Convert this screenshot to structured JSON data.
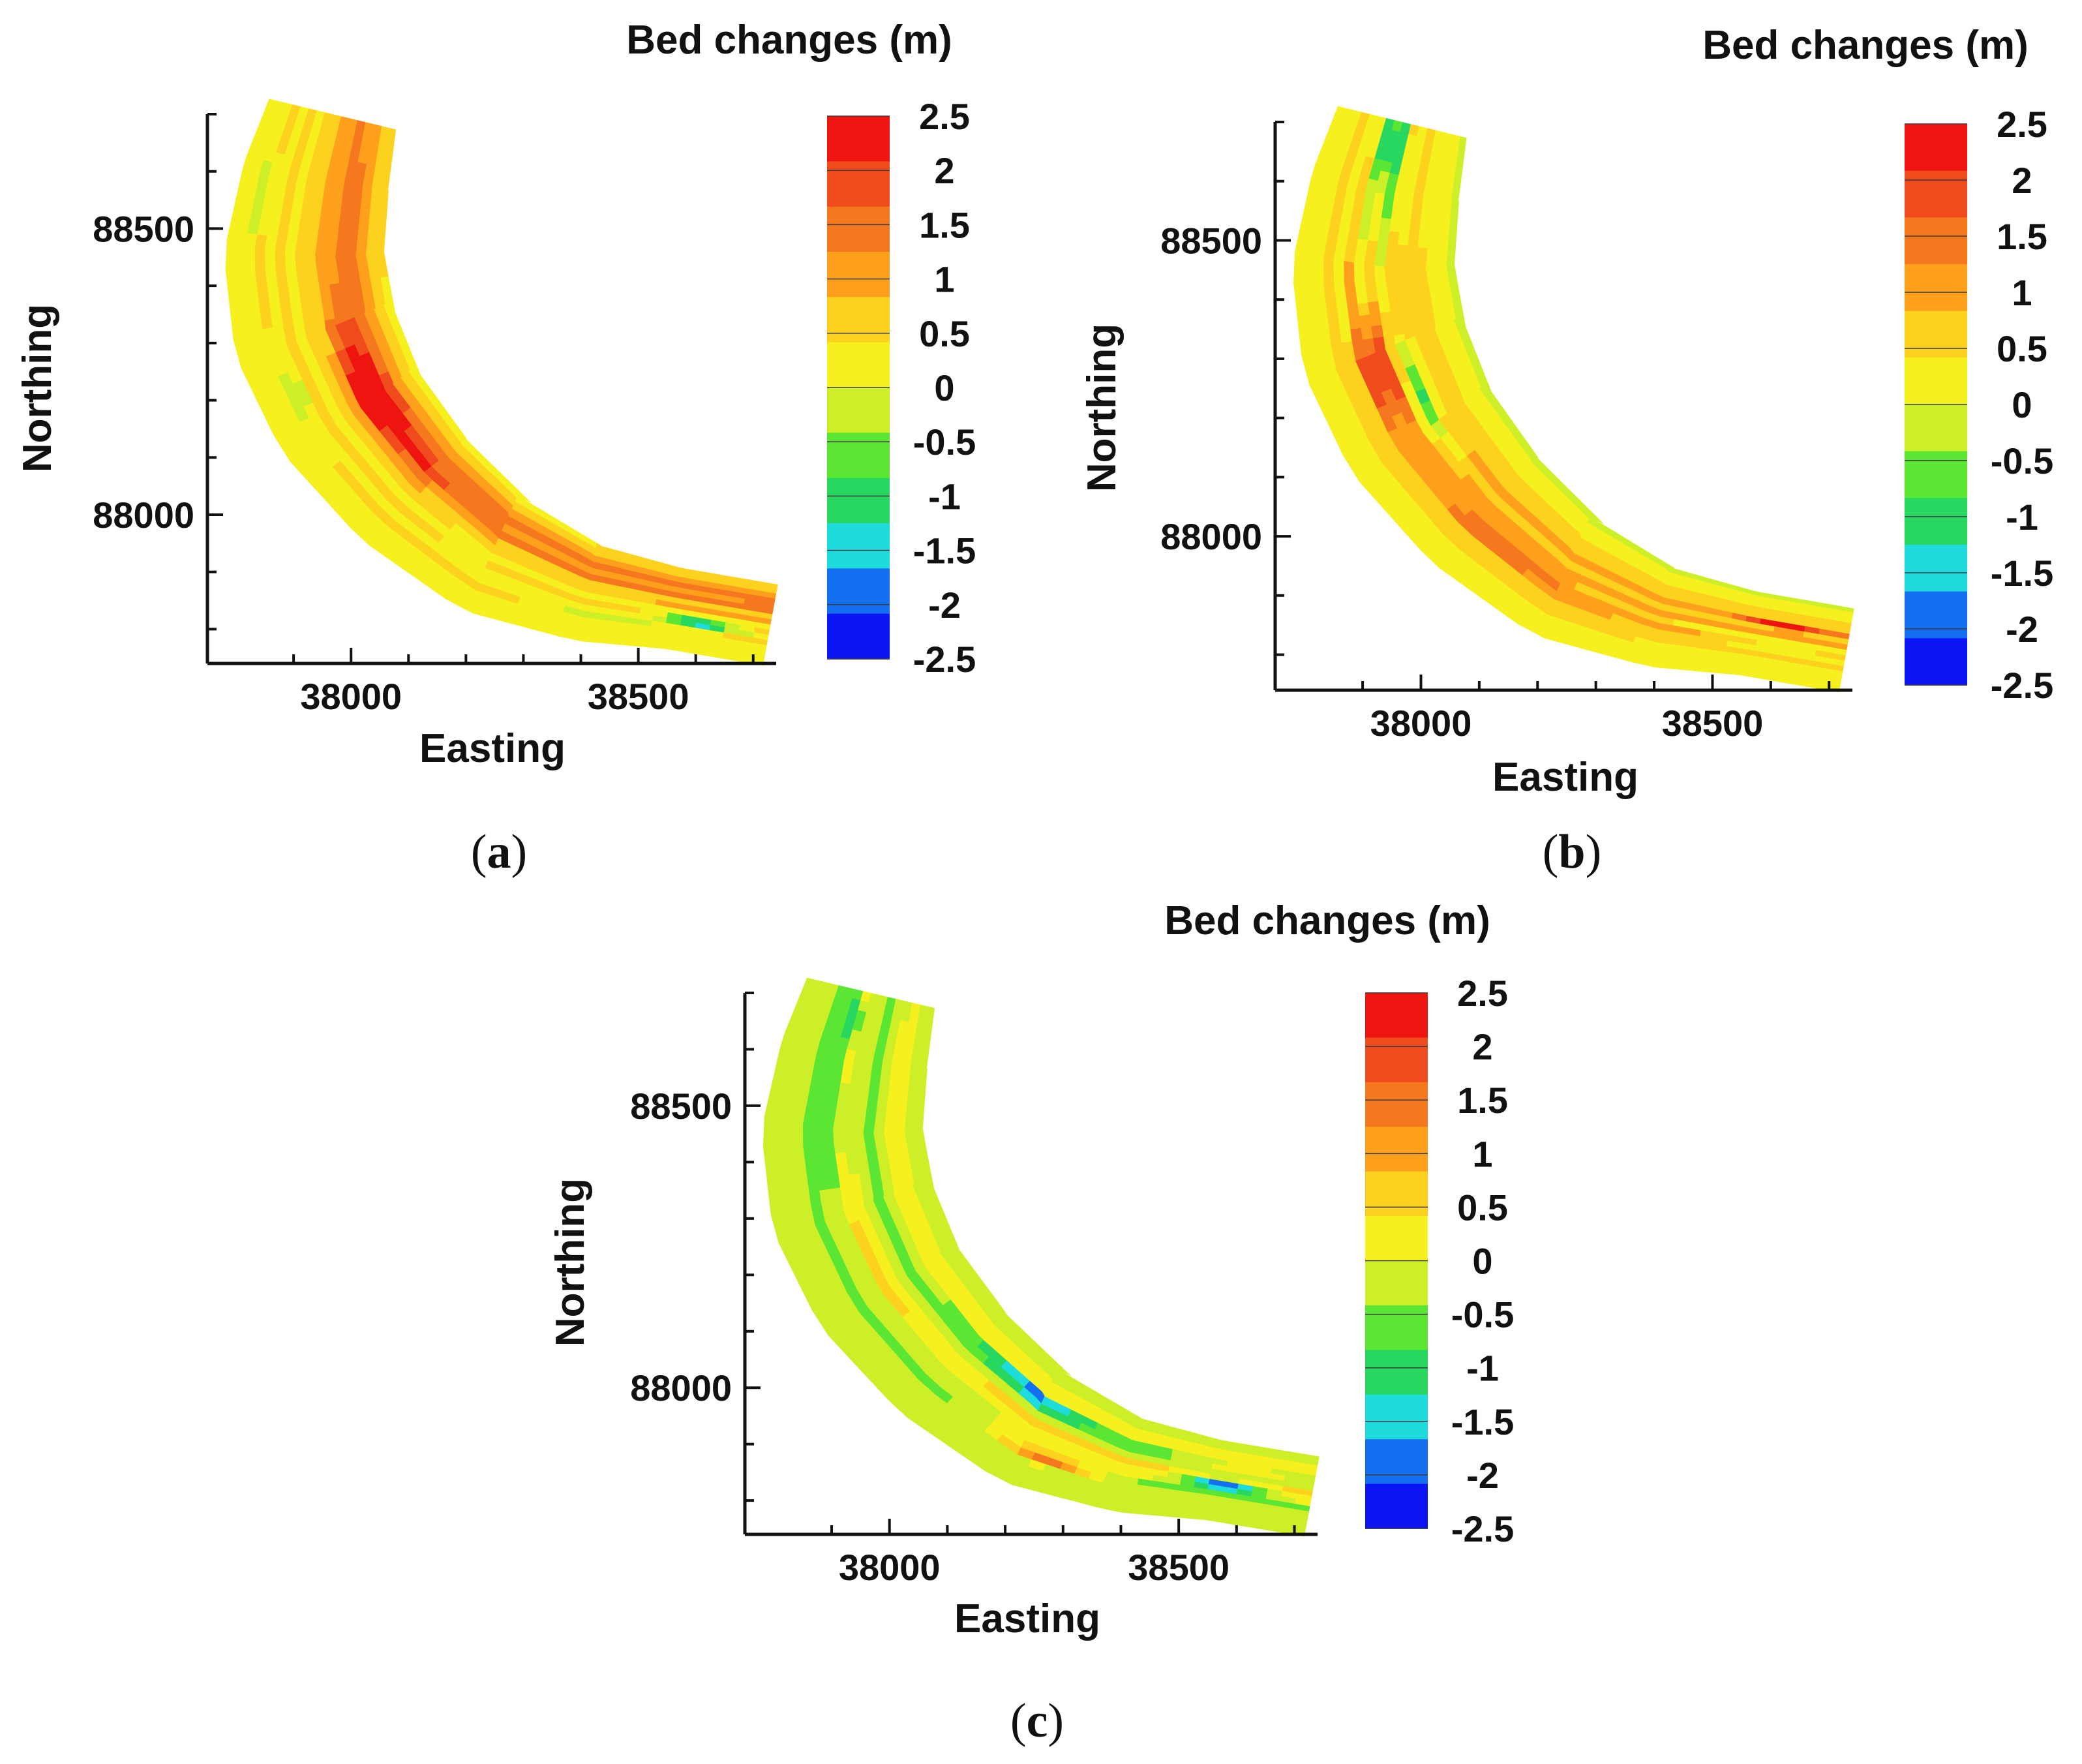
{
  "figure": {
    "panel_labels": [
      "a",
      "b",
      "c"
    ],
    "label_open": "(",
    "label_close": ")"
  },
  "colors": {
    "background": "#ffffff",
    "axis": "#111111",
    "colormap": [
      "#0b14f2",
      "#1470f0",
      "#1edcdc",
      "#28d760",
      "#5ae632",
      "#cdef28",
      "#f5f01e",
      "#fdd21e",
      "#ffa01c",
      "#f5781e",
      "#f04b1c",
      "#ee1410"
    ]
  },
  "chart_data": [
    {
      "type": "heatmap",
      "panel": "a",
      "title": "Bed changes (m)",
      "xlabel": "Easting",
      "ylabel": "Northing",
      "xlim": [
        37750,
        38740
      ],
      "ylim": [
        87740,
        88700
      ],
      "xticks": [
        38000,
        38500
      ],
      "yticks": [
        88000,
        88500
      ],
      "colorbar": {
        "title": "Bed changes (m)",
        "min": -2.5,
        "max": 2.5,
        "ticks": [
          "2.5",
          "2",
          "1.5",
          "1",
          "0.5",
          "0",
          "-0.5",
          "-1",
          "-1.5",
          "-2",
          "-2.5"
        ]
      },
      "field": {
        "base": 0.25,
        "bands": [
          0.9,
          1.35,
          1.6,
          1.1,
          0.5,
          0.35,
          0.5,
          0.3,
          0.25
        ],
        "features": [
          {
            "s": 0.45,
            "n": -0.3,
            "ds": 0.1,
            "dn": 0.2,
            "v": 1.8
          },
          {
            "s": 0.4,
            "n": 0.55,
            "ds": 0.06,
            "dn": 0.1,
            "v": -0.9
          },
          {
            "s": 0.92,
            "n": 0.25,
            "ds": 0.04,
            "dn": 0.12,
            "v": -2.2
          },
          {
            "s": 0.82,
            "n": 0.45,
            "ds": 0.08,
            "dn": 0.1,
            "v": -0.7
          },
          {
            "s": 0.15,
            "n": 0.7,
            "ds": 0.08,
            "dn": 0.2,
            "v": -0.3
          }
        ],
        "streak": 0.55
      }
    },
    {
      "type": "heatmap",
      "panel": "b",
      "title": "Bed changes (m)",
      "xlabel": "Easting",
      "ylabel": "Northing",
      "xlim": [
        37750,
        38740
      ],
      "ylim": [
        87740,
        88700
      ],
      "xticks": [
        38000,
        38500
      ],
      "yticks": [
        88000,
        88500
      ],
      "colorbar": {
        "title": "Bed changes (m)",
        "min": -2.5,
        "max": 2.5,
        "ticks": [
          "2.5",
          "2",
          "1.5",
          "1",
          "0.5",
          "0",
          "-0.5",
          "-1",
          "-1.5",
          "-2",
          "-2.5"
        ]
      },
      "field": {
        "base": 0.05,
        "bands": [
          -0.3,
          0.5,
          0.9,
          0.5,
          0.6,
          0.3,
          0.2
        ],
        "features": [
          {
            "s": 0.03,
            "n": 0.1,
            "ds": 0.06,
            "dn": 0.2,
            "v": -1.5
          },
          {
            "s": 0.1,
            "n": -0.1,
            "ds": 0.12,
            "dn": 0.35,
            "v": -0.8
          },
          {
            "s": 0.4,
            "n": -0.2,
            "ds": 0.08,
            "dn": 0.15,
            "v": -1.8
          },
          {
            "s": 0.36,
            "n": 0.15,
            "ds": 0.07,
            "dn": 0.25,
            "v": 1.5
          },
          {
            "s": 0.6,
            "n": 0.2,
            "ds": 0.15,
            "dn": 0.3,
            "v": 0.8
          },
          {
            "s": 0.93,
            "n": -0.3,
            "ds": 0.04,
            "dn": 0.1,
            "v": 1.6
          },
          {
            "s": 0.93,
            "n": 0.2,
            "ds": 0.04,
            "dn": 0.1,
            "v": -0.8
          }
        ],
        "streak": 0.9
      }
    },
    {
      "type": "heatmap",
      "panel": "c",
      "title": "Bed changes (m)",
      "xlabel": "Easting",
      "ylabel": "Northing",
      "xlim": [
        37750,
        38740
      ],
      "ylim": [
        87740,
        88700
      ],
      "xticks": [
        38000,
        38500
      ],
      "yticks": [
        88000,
        88500
      ],
      "colorbar": {
        "title": "Bed changes (m)",
        "min": -2.5,
        "max": 2.5,
        "ticks": [
          "2.5",
          "2",
          "1.5",
          "1",
          "0.5",
          "0",
          "-0.5",
          "-1",
          "-1.5",
          "-2",
          "-2.5"
        ]
      },
      "field": {
        "base": -0.25,
        "bands": [
          -0.4,
          0.45,
          -0.7,
          0.6,
          -0.5,
          -0.2,
          0.2
        ],
        "features": [
          {
            "s": 0.7,
            "n": 0.4,
            "ds": 0.06,
            "dn": 0.12,
            "v": 2.0
          },
          {
            "s": 0.65,
            "n": -0.4,
            "ds": 0.07,
            "dn": 0.1,
            "v": -1.6
          },
          {
            "s": 0.9,
            "n": 0.1,
            "ds": 0.05,
            "dn": 0.15,
            "v": -2.1
          },
          {
            "s": 0.92,
            "n": -0.35,
            "ds": 0.05,
            "dn": 0.15,
            "v": 0.9
          },
          {
            "s": 0.2,
            "n": 0.1,
            "ds": 0.1,
            "dn": 0.25,
            "v": -0.7
          },
          {
            "s": 0.05,
            "n": 0.1,
            "ds": 0.05,
            "dn": 0.2,
            "v": -1.0
          }
        ],
        "streak": 0.5
      }
    }
  ]
}
